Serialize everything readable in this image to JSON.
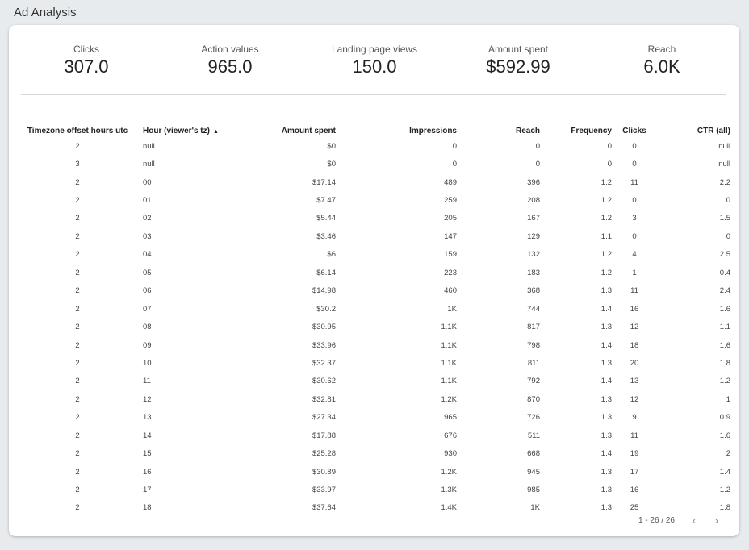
{
  "page": {
    "title": "Ad Analysis"
  },
  "kpis": [
    {
      "label": "Clicks",
      "value": "307.0"
    },
    {
      "label": "Action values",
      "value": "965.0"
    },
    {
      "label": "Landing page views",
      "value": "150.0"
    },
    {
      "label": "Amount spent",
      "value": "$592.99"
    },
    {
      "label": "Reach",
      "value": "6.0K"
    }
  ],
  "table": {
    "headers": {
      "tz": "Timezone offset hours utc",
      "hour": "Hour (viewer's tz)",
      "amount": "Amount spent",
      "impressions": "Impressions",
      "reach": "Reach",
      "frequency": "Frequency",
      "clicks": "Clicks",
      "ctr": "CTR (all)"
    },
    "sort_indicator": "▲",
    "rows": [
      [
        "2",
        "null",
        "$0",
        "0",
        "0",
        "0",
        "0",
        "null"
      ],
      [
        "3",
        "null",
        "$0",
        "0",
        "0",
        "0",
        "0",
        "null"
      ],
      [
        "2",
        "00",
        "$17.14",
        "489",
        "396",
        "1.2",
        "11",
        "2.2"
      ],
      [
        "2",
        "01",
        "$7.47",
        "259",
        "208",
        "1.2",
        "0",
        "0"
      ],
      [
        "2",
        "02",
        "$5.44",
        "205",
        "167",
        "1.2",
        "3",
        "1.5"
      ],
      [
        "2",
        "03",
        "$3.46",
        "147",
        "129",
        "1.1",
        "0",
        "0"
      ],
      [
        "2",
        "04",
        "$6",
        "159",
        "132",
        "1.2",
        "4",
        "2.5"
      ],
      [
        "2",
        "05",
        "$6.14",
        "223",
        "183",
        "1.2",
        "1",
        "0.4"
      ],
      [
        "2",
        "06",
        "$14.98",
        "460",
        "368",
        "1.3",
        "11",
        "2.4"
      ],
      [
        "2",
        "07",
        "$30.2",
        "1K",
        "744",
        "1.4",
        "16",
        "1.6"
      ],
      [
        "2",
        "08",
        "$30.95",
        "1.1K",
        "817",
        "1.3",
        "12",
        "1.1"
      ],
      [
        "2",
        "09",
        "$33.96",
        "1.1K",
        "798",
        "1.4",
        "18",
        "1.6"
      ],
      [
        "2",
        "10",
        "$32.37",
        "1.1K",
        "811",
        "1.3",
        "20",
        "1.8"
      ],
      [
        "2",
        "11",
        "$30.62",
        "1.1K",
        "792",
        "1.4",
        "13",
        "1.2"
      ],
      [
        "2",
        "12",
        "$32.81",
        "1.2K",
        "870",
        "1.3",
        "12",
        "1"
      ],
      [
        "2",
        "13",
        "$27.34",
        "965",
        "726",
        "1.3",
        "9",
        "0.9"
      ],
      [
        "2",
        "14",
        "$17.88",
        "676",
        "511",
        "1.3",
        "11",
        "1.6"
      ],
      [
        "2",
        "15",
        "$25.28",
        "930",
        "668",
        "1.4",
        "19",
        "2"
      ],
      [
        "2",
        "16",
        "$30.89",
        "1.2K",
        "945",
        "1.3",
        "17",
        "1.4"
      ],
      [
        "2",
        "17",
        "$33.97",
        "1.3K",
        "985",
        "1.3",
        "16",
        "1.2"
      ],
      [
        "2",
        "18",
        "$37.64",
        "1.4K",
        "1K",
        "1.3",
        "25",
        "1.8"
      ]
    ]
  },
  "pagination": {
    "range": "1 - 26 / 26",
    "prev_icon": "chevron-left-icon",
    "next_icon": "chevron-right-icon"
  }
}
